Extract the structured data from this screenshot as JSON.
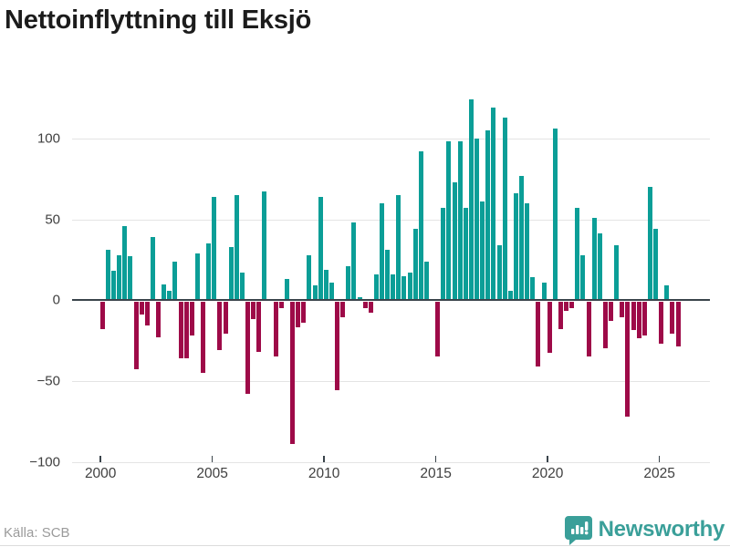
{
  "header": {
    "title": "Nettoinflyttning till Eksjö"
  },
  "footer": {
    "source": "Källa: SCB",
    "brand": "Newsworthy"
  },
  "chart_data": {
    "type": "bar",
    "title": "Nettoinflyttning till Eksjö",
    "frequency": "quarterly",
    "x_start_year": 2000,
    "x_start_quarter": 1,
    "values": [
      -17,
      31,
      18,
      28,
      46,
      27,
      -42,
      -8,
      -15,
      39,
      -22,
      10,
      6,
      24,
      -35,
      -35,
      -21,
      29,
      -44,
      35,
      64,
      -30,
      -20,
      33,
      65,
      17,
      -57,
      -11,
      -31,
      67,
      0,
      -34,
      -4,
      13,
      -88,
      -16,
      -13,
      28,
      9,
      64,
      19,
      11,
      -55,
      -10,
      21,
      48,
      2,
      -4,
      -7,
      16,
      60,
      31,
      16,
      65,
      15,
      17,
      44,
      92,
      24,
      0,
      -34,
      57,
      98,
      73,
      98,
      57,
      124,
      100,
      61,
      105,
      119,
      34,
      113,
      6,
      66,
      77,
      60,
      14,
      -40,
      11,
      -32,
      106,
      -17,
      -6,
      -4,
      57,
      28,
      -34,
      51,
      41,
      -29,
      -12,
      34,
      -10,
      -71,
      -18,
      -23,
      -21,
      70,
      44,
      -26,
      9,
      -20,
      -28
    ],
    "yticks": [
      100,
      50,
      0,
      -50,
      -100
    ],
    "xticks": [
      2000,
      2005,
      2010,
      2015,
      2020,
      2025
    ],
    "ylim": [
      -100,
      130
    ],
    "grid": "horizontal",
    "legend": "none",
    "colors": {
      "positive": "#0b9e97",
      "negative": "#9e0a48",
      "brand": "#3a9f99"
    },
    "source": "Källa: SCB"
  }
}
